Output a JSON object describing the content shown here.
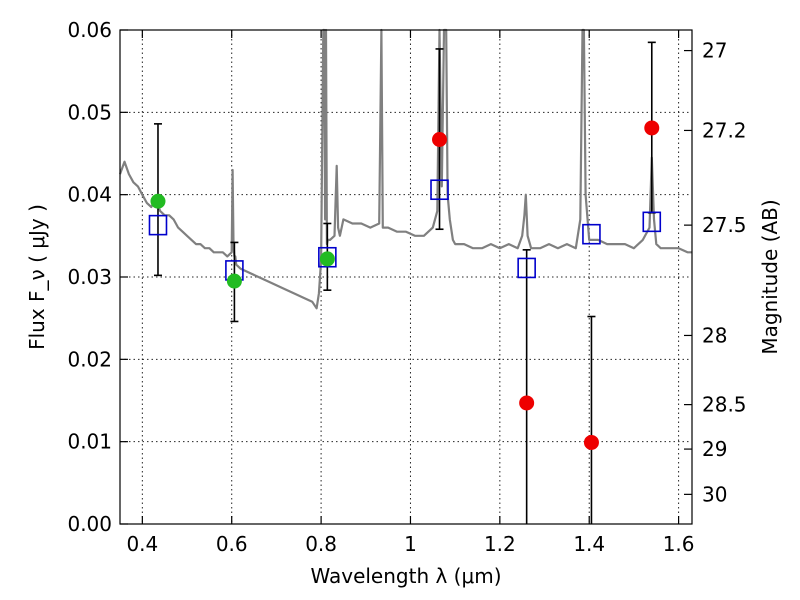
{
  "chart_data": {
    "type": "scatter",
    "title": "",
    "xlabel": "Wavelength  λ (μm)",
    "ylabel": "Flux  F_ν  ( μJy )",
    "ylabel_right": "Magnitude (AB)",
    "xlim": [
      0.35,
      1.63
    ],
    "ylim": [
      0.0,
      0.06
    ],
    "grid": true,
    "x_ticks": [
      0.4,
      0.6,
      0.8,
      1.0,
      1.2,
      1.4,
      1.6
    ],
    "x_tick_labels": [
      "0.4",
      "0.6",
      "0.8",
      "1",
      "1.2",
      "1.4",
      "1.6"
    ],
    "y_ticks": [
      0.0,
      0.01,
      0.02,
      0.03,
      0.04,
      0.05,
      0.06
    ],
    "y_tick_labels": [
      "0.00",
      "0.01",
      "0.02",
      "0.03",
      "0.04",
      "0.05",
      "0.06"
    ],
    "right_ticks": [
      {
        "flux": 0.0575,
        "label": "27"
      },
      {
        "flux": 0.0478,
        "label": "27.2"
      },
      {
        "flux": 0.0363,
        "label": "27.5"
      },
      {
        "flux": 0.0229,
        "label": "28"
      },
      {
        "flux": 0.0145,
        "label": "28.5"
      },
      {
        "flux": 0.0091,
        "label": "29"
      },
      {
        "flux": 0.0036,
        "label": "30"
      }
    ],
    "colors": {
      "model": "#808080",
      "detected": "#22bb22",
      "upper": "#ee0000",
      "model_band": "#0000cc",
      "errorbar": "#000000"
    },
    "series": [
      {
        "x": [
          0.435,
          0.606,
          0.814
        ],
        "y": [
          0.0392,
          0.0295,
          0.0322
        ],
        "yerr_low": [
          0.0302,
          0.0246,
          0.0284
        ],
        "yerr_high": [
          0.0486,
          0.0342,
          0.0365
        ]
      },
      {
        "x": [
          1.065,
          1.26,
          1.405,
          1.54
        ],
        "y": [
          0.0467,
          0.0147,
          0.0099,
          0.0481
        ],
        "yerr_low": [
          0.0358,
          0.0,
          0.0,
          0.0378
        ],
        "yerr_high": [
          0.0577,
          0.0333,
          0.0252,
          0.0585
        ]
      },
      {
        "x": [
          0.435,
          0.606,
          0.814,
          1.065,
          1.26,
          1.405,
          1.54
        ],
        "y": [
          0.0363,
          0.0308,
          0.0324,
          0.0406,
          0.0311,
          0.0352,
          0.0367
        ]
      },
      {
        "x": [
          0.35,
          0.36,
          0.37,
          0.38,
          0.39,
          0.4,
          0.41,
          0.42,
          0.43,
          0.44,
          0.45,
          0.46,
          0.47,
          0.48,
          0.49,
          0.5,
          0.51,
          0.52,
          0.53,
          0.54,
          0.55,
          0.56,
          0.57,
          0.58,
          0.59,
          0.6,
          0.602,
          0.604,
          0.606,
          0.608,
          0.61,
          0.62,
          0.64,
          0.66,
          0.68,
          0.7,
          0.72,
          0.74,
          0.76,
          0.78,
          0.79,
          0.795,
          0.8,
          0.805,
          0.807,
          0.809,
          0.811,
          0.813,
          0.815,
          0.82,
          0.83,
          0.835,
          0.838,
          0.842,
          0.85,
          0.87,
          0.89,
          0.91,
          0.93,
          0.935,
          0.938,
          0.942,
          0.95,
          0.97,
          0.99,
          1.01,
          1.03,
          1.05,
          1.06,
          1.065,
          1.07,
          1.075,
          1.08,
          1.083,
          1.088,
          1.095,
          1.1,
          1.12,
          1.14,
          1.16,
          1.18,
          1.2,
          1.22,
          1.24,
          1.25,
          1.255,
          1.258,
          1.262,
          1.27,
          1.29,
          1.31,
          1.33,
          1.35,
          1.37,
          1.38,
          1.385,
          1.388,
          1.392,
          1.4,
          1.42,
          1.44,
          1.46,
          1.48,
          1.5,
          1.52,
          1.535,
          1.54,
          1.545,
          1.55,
          1.56,
          1.58,
          1.6,
          1.62,
          1.63
        ],
        "y": [
          0.0425,
          0.044,
          0.0425,
          0.0415,
          0.041,
          0.04,
          0.039,
          0.0385,
          0.0395,
          0.038,
          0.0375,
          0.0375,
          0.037,
          0.036,
          0.0355,
          0.035,
          0.0345,
          0.034,
          0.034,
          0.0335,
          0.0335,
          0.033,
          0.033,
          0.033,
          0.0325,
          0.033,
          0.043,
          0.034,
          0.0325,
          0.0325,
          0.0315,
          0.031,
          0.0305,
          0.03,
          0.0295,
          0.029,
          0.0285,
          0.028,
          0.0275,
          0.027,
          0.0262,
          0.028,
          0.032,
          0.06,
          0.06,
          0.037,
          0.06,
          0.034,
          0.0345,
          0.0345,
          0.035,
          0.0435,
          0.036,
          0.035,
          0.037,
          0.0365,
          0.0365,
          0.036,
          0.0365,
          0.06,
          0.036,
          0.036,
          0.036,
          0.0355,
          0.0355,
          0.035,
          0.035,
          0.036,
          0.038,
          0.06,
          0.041,
          0.06,
          0.06,
          0.04,
          0.037,
          0.0345,
          0.034,
          0.034,
          0.0335,
          0.0335,
          0.034,
          0.0335,
          0.034,
          0.0335,
          0.035,
          0.0375,
          0.04,
          0.035,
          0.0335,
          0.0335,
          0.034,
          0.0335,
          0.034,
          0.0335,
          0.037,
          0.06,
          0.06,
          0.04,
          0.0345,
          0.0345,
          0.034,
          0.034,
          0.034,
          0.0335,
          0.0345,
          0.036,
          0.0445,
          0.037,
          0.034,
          0.0335,
          0.0335,
          0.0335,
          0.033,
          0.033
        ]
      }
    ]
  }
}
